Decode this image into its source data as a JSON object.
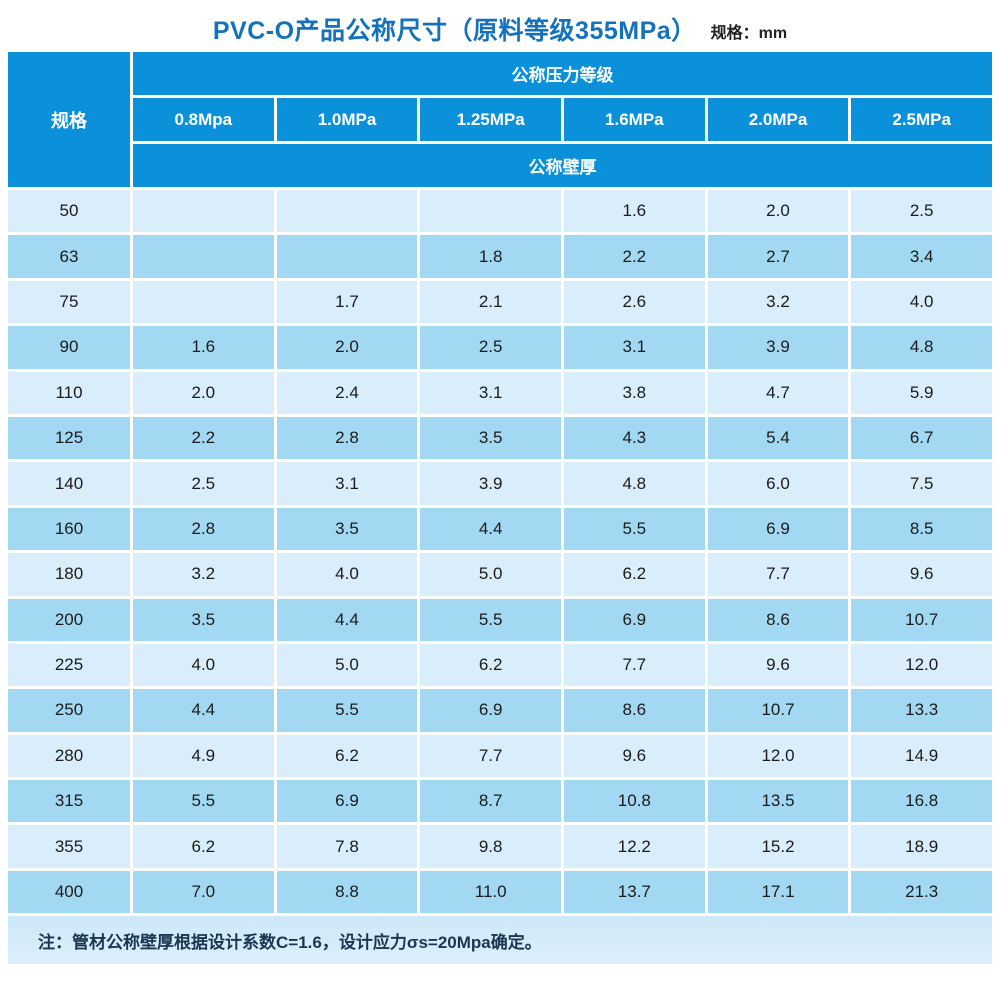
{
  "page": {
    "title": "PVC-O产品公称尺寸（原料等级355MPa）",
    "unit_label": "规格：mm"
  },
  "table": {
    "corner_header": "规格",
    "pressure_group_header": "公称压力等级",
    "wall_thickness_header": "公称壁厚",
    "pressure_columns": [
      "0.8Mpa",
      "1.0MPa",
      "1.25MPa",
      "1.6MPa",
      "2.0MPa",
      "2.5MPa"
    ],
    "rows": [
      {
        "spec": "50",
        "values": [
          "",
          "",
          "",
          "1.6",
          "2.0",
          "2.5"
        ]
      },
      {
        "spec": "63",
        "values": [
          "",
          "",
          "1.8",
          "2.2",
          "2.7",
          "3.4"
        ]
      },
      {
        "spec": "75",
        "values": [
          "",
          "1.7",
          "2.1",
          "2.6",
          "3.2",
          "4.0"
        ]
      },
      {
        "spec": "90",
        "values": [
          "1.6",
          "2.0",
          "2.5",
          "3.1",
          "3.9",
          "4.8"
        ]
      },
      {
        "spec": "110",
        "values": [
          "2.0",
          "2.4",
          "3.1",
          "3.8",
          "4.7",
          "5.9"
        ]
      },
      {
        "spec": "125",
        "values": [
          "2.2",
          "2.8",
          "3.5",
          "4.3",
          "5.4",
          "6.7"
        ]
      },
      {
        "spec": "140",
        "values": [
          "2.5",
          "3.1",
          "3.9",
          "4.8",
          "6.0",
          "7.5"
        ]
      },
      {
        "spec": "160",
        "values": [
          "2.8",
          "3.5",
          "4.4",
          "5.5",
          "6.9",
          "8.5"
        ]
      },
      {
        "spec": "180",
        "values": [
          "3.2",
          "4.0",
          "5.0",
          "6.2",
          "7.7",
          "9.6"
        ]
      },
      {
        "spec": "200",
        "values": [
          "3.5",
          "4.4",
          "5.5",
          "6.9",
          "8.6",
          "10.7"
        ]
      },
      {
        "spec": "225",
        "values": [
          "4.0",
          "5.0",
          "6.2",
          "7.7",
          "9.6",
          "12.0"
        ]
      },
      {
        "spec": "250",
        "values": [
          "4.4",
          "5.5",
          "6.9",
          "8.6",
          "10.7",
          "13.3"
        ]
      },
      {
        "spec": "280",
        "values": [
          "4.9",
          "6.2",
          "7.7",
          "9.6",
          "12.0",
          "14.9"
        ]
      },
      {
        "spec": "315",
        "values": [
          "5.5",
          "6.9",
          "8.7",
          "10.8",
          "13.5",
          "16.8"
        ]
      },
      {
        "spec": "355",
        "values": [
          "6.2",
          "7.8",
          "9.8",
          "12.2",
          "15.2",
          "18.9"
        ]
      },
      {
        "spec": "400",
        "values": [
          "7.0",
          "8.8",
          "11.0",
          "13.7",
          "17.1",
          "21.3"
        ]
      }
    ],
    "note": "注：管材公称壁厚根据设计系数C=1.6，设计应力σs=20Mpa确定。"
  },
  "colors": {
    "header_blue": "#0a91d9",
    "row_light": "#d9edfa",
    "row_medium": "#a2d8f2",
    "note_band": "#cde8f9",
    "title_blue": "#1472ba",
    "cell_text": "#1b1b1b"
  }
}
